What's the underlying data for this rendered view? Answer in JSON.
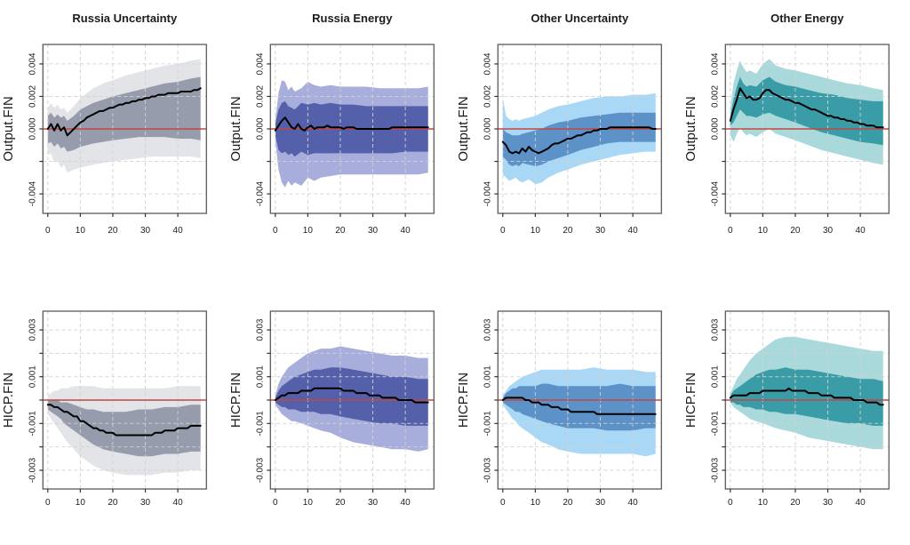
{
  "chart_data": {
    "type": "line",
    "title": "",
    "xlabel": "",
    "legend": "none",
    "grid": true,
    "col_titles": [
      "Russia Uncertainty",
      "Russia Energy",
      "Other Uncertainty",
      "Other Energy"
    ],
    "row_ylabels": [
      "Output.FIN",
      "HICP.FIN"
    ],
    "x_ticks": [
      0,
      10,
      20,
      30,
      40
    ],
    "x_range": [
      0,
      47
    ],
    "value_scale": 0.0001,
    "zero_line_color": "#C24743",
    "median_color": "#000000",
    "grid_color": "#d2d2d2",
    "box_color": "#5a5a5a",
    "rows": [
      {
        "ylabel": "Output.FIN",
        "ylim": [
          -52,
          52
        ],
        "y_ticks": [
          40,
          20,
          0,
          -20,
          -40
        ],
        "y_tick_labels": [
          "0.004",
          "0.002",
          "0.000",
          "",
          "-0.004"
        ]
      },
      {
        "ylabel": "HICP.FIN",
        "ylim": [
          -38,
          38
        ],
        "y_ticks": [
          30,
          20,
          10,
          0,
          -10,
          -20,
          -30
        ],
        "y_tick_labels": [
          "0.003",
          "",
          "0.001",
          "",
          "-0.001",
          "",
          "-0.003"
        ]
      }
    ],
    "band_x": [
      0,
      1,
      2,
      3,
      4,
      5,
      6,
      8,
      10,
      12,
      14,
      17,
      20,
      24,
      28,
      32,
      36,
      40,
      44,
      47
    ],
    "panels": [
      {
        "row": 0,
        "col": 0,
        "title": "Russia Uncertainty",
        "ylabel": "Output.FIN",
        "colors": {
          "outer": "#E3E4E7",
          "inner": "#969CAC"
        },
        "median": [
          0,
          3,
          -1,
          3,
          -1,
          1,
          -4,
          -2,
          0,
          2,
          4,
          5,
          7,
          8,
          9,
          10,
          11,
          11,
          12,
          13,
          13,
          14,
          15,
          15,
          16,
          16,
          17,
          17,
          18,
          18,
          19,
          19,
          20,
          20,
          21,
          21,
          21,
          22,
          22,
          22,
          22,
          23,
          23,
          23,
          23,
          24,
          24,
          25
        ],
        "inner_hi": [
          8,
          10,
          7,
          9,
          7,
          8,
          5,
          8,
          12,
          14,
          16,
          18,
          20,
          22,
          24,
          26,
          28,
          29,
          31,
          32
        ],
        "inner_lo": [
          -9,
          -8,
          -11,
          -9,
          -12,
          -11,
          -14,
          -13,
          -11,
          -10,
          -9,
          -8,
          -7,
          -6,
          -5,
          -5,
          -5,
          -6,
          -6,
          -7
        ],
        "outer_hi": [
          13,
          16,
          13,
          15,
          12,
          13,
          10,
          14,
          19,
          22,
          25,
          28,
          30,
          33,
          35,
          37,
          39,
          40,
          42,
          43
        ],
        "outer_lo": [
          -16,
          -15,
          -21,
          -19,
          -24,
          -22,
          -27,
          -25,
          -24,
          -23,
          -22,
          -21,
          -20,
          -19,
          -18,
          -17,
          -17,
          -17,
          -17,
          -18
        ]
      },
      {
        "row": 0,
        "col": 1,
        "title": "Russia Energy",
        "ylabel": "Output.FIN",
        "colors": {
          "outer": "#A8AEDC",
          "inner": "#5560AA"
        },
        "median": [
          -1,
          2,
          5,
          7,
          4,
          1,
          0,
          3,
          0,
          -1,
          1,
          2,
          0,
          1,
          1,
          1,
          2,
          1,
          1,
          1,
          1,
          0,
          1,
          1,
          1,
          0,
          0,
          0,
          0,
          0,
          0,
          0,
          0,
          0,
          0,
          0,
          1,
          1,
          1,
          1,
          1,
          1,
          1,
          1,
          1,
          1,
          1,
          1
        ],
        "inner_hi": [
          3,
          12,
          16,
          17,
          14,
          13,
          12,
          16,
          15,
          16,
          15,
          16,
          15,
          15,
          14,
          14,
          14,
          14,
          14,
          14
        ],
        "inner_lo": [
          -4,
          -13,
          -15,
          -14,
          -16,
          -15,
          -17,
          -14,
          -16,
          -15,
          -15,
          -15,
          -15,
          -15,
          -15,
          -15,
          -15,
          -14,
          -14,
          -14
        ],
        "outer_hi": [
          5,
          22,
          30,
          29,
          24,
          26,
          23,
          25,
          29,
          27,
          26,
          27,
          26,
          26,
          26,
          25,
          25,
          25,
          25,
          26
        ],
        "outer_lo": [
          -7,
          -25,
          -33,
          -36,
          -32,
          -35,
          -33,
          -35,
          -30,
          -32,
          -30,
          -29,
          -28,
          -28,
          -28,
          -28,
          -28,
          -28,
          -28,
          -27
        ]
      },
      {
        "row": 0,
        "col": 2,
        "title": "Other Uncertainty",
        "ylabel": "Output.FIN",
        "colors": {
          "outer": "#A9D8F6",
          "inner": "#5C92C8"
        },
        "median": [
          -8,
          -10,
          -14,
          -15,
          -14,
          -15,
          -12,
          -14,
          -11,
          -13,
          -14,
          -15,
          -14,
          -13,
          -12,
          -10,
          -9,
          -9,
          -8,
          -7,
          -6,
          -6,
          -5,
          -4,
          -4,
          -3,
          -2,
          -2,
          -1,
          -1,
          0,
          0,
          0,
          1,
          1,
          1,
          1,
          1,
          1,
          1,
          1,
          1,
          1,
          1,
          1,
          1,
          0,
          0
        ],
        "inner_hi": [
          0,
          -2,
          -3,
          -4,
          -4,
          -4,
          -3,
          -2,
          -1,
          0,
          2,
          4,
          5,
          7,
          8,
          9,
          10,
          10,
          10,
          10
        ],
        "inner_lo": [
          -17,
          -19,
          -22,
          -23,
          -22,
          -23,
          -21,
          -22,
          -23,
          -22,
          -20,
          -18,
          -16,
          -13,
          -11,
          -9,
          -8,
          -8,
          -8,
          -8
        ],
        "outer_hi": [
          19,
          8,
          6,
          5,
          6,
          5,
          6,
          7,
          8,
          10,
          12,
          14,
          15,
          17,
          19,
          20,
          20,
          21,
          21,
          22
        ],
        "outer_lo": [
          -28,
          -30,
          -32,
          -31,
          -30,
          -32,
          -33,
          -31,
          -34,
          -33,
          -30,
          -27,
          -25,
          -22,
          -20,
          -18,
          -16,
          -15,
          -14,
          -14
        ]
      },
      {
        "row": 0,
        "col": 3,
        "title": "Other Energy",
        "ylabel": "Output.FIN",
        "colors": {
          "outer": "#AAD9DC",
          "inner": "#399CA6"
        },
        "median": [
          5,
          12,
          18,
          25,
          22,
          19,
          20,
          18,
          18,
          19,
          22,
          24,
          24,
          22,
          21,
          20,
          19,
          18,
          18,
          17,
          16,
          16,
          15,
          14,
          13,
          12,
          12,
          11,
          10,
          9,
          8,
          8,
          7,
          7,
          6,
          6,
          5,
          5,
          4,
          4,
          3,
          3,
          2,
          2,
          2,
          1,
          1,
          1
        ],
        "inner_hi": [
          8,
          18,
          26,
          32,
          28,
          26,
          27,
          26,
          30,
          32,
          29,
          27,
          26,
          24,
          22,
          21,
          19,
          18,
          17,
          17
        ],
        "inner_lo": [
          2,
          4,
          8,
          12,
          10,
          8,
          8,
          7,
          9,
          10,
          8,
          6,
          4,
          1,
          -2,
          -4,
          -6,
          -8,
          -9,
          -10
        ],
        "outer_hi": [
          13,
          28,
          36,
          42,
          38,
          35,
          36,
          34,
          40,
          43,
          39,
          37,
          36,
          34,
          32,
          30,
          28,
          27,
          25,
          24
        ],
        "outer_lo": [
          -4,
          -8,
          -3,
          1,
          -2,
          -4,
          -3,
          -5,
          -2,
          0,
          -3,
          -5,
          -7,
          -10,
          -13,
          -15,
          -17,
          -19,
          -21,
          -22
        ]
      },
      {
        "row": 1,
        "col": 0,
        "title": "",
        "ylabel": "HICP.FIN",
        "colors": {
          "outer": "#E3E4E7",
          "inner": "#969CAC"
        },
        "median": [
          -2,
          -2,
          -3,
          -3,
          -4,
          -5,
          -5,
          -6,
          -7,
          -7,
          -9,
          -9,
          -10,
          -11,
          -12,
          -12,
          -13,
          -13,
          -14,
          -14,
          -14,
          -15,
          -15,
          -15,
          -15,
          -15,
          -15,
          -15,
          -15,
          -15,
          -15,
          -15,
          -15,
          -14,
          -14,
          -14,
          -13,
          -13,
          -13,
          -13,
          -12,
          -12,
          -12,
          -12,
          -11,
          -11,
          -11,
          -11
        ],
        "inner_hi": [
          0,
          0,
          0,
          0,
          -1,
          -1,
          -1,
          -2,
          -3,
          -4,
          -4,
          -5,
          -5,
          -5,
          -4,
          -4,
          -3,
          -3,
          -2,
          -2
        ],
        "inner_lo": [
          -4,
          -5,
          -6,
          -7,
          -8,
          -10,
          -11,
          -13,
          -15,
          -17,
          -19,
          -21,
          -22,
          -23,
          -24,
          -24,
          -23,
          -23,
          -22,
          -22
        ],
        "outer_hi": [
          2,
          3,
          4,
          4,
          5,
          5,
          5,
          6,
          6,
          6,
          6,
          5,
          5,
          5,
          5,
          5,
          5,
          6,
          6,
          6
        ],
        "outer_lo": [
          -6,
          -8,
          -10,
          -12,
          -14,
          -16,
          -18,
          -21,
          -24,
          -26,
          -28,
          -30,
          -31,
          -32,
          -32,
          -32,
          -31,
          -31,
          -30,
          -30
        ]
      },
      {
        "row": 1,
        "col": 1,
        "title": "",
        "ylabel": "HICP.FIN",
        "colors": {
          "outer": "#A8AEDC",
          "inner": "#5560AA"
        },
        "median": [
          0,
          1,
          2,
          2,
          3,
          3,
          3,
          3,
          4,
          4,
          4,
          4,
          5,
          5,
          5,
          5,
          5,
          5,
          5,
          5,
          5,
          4,
          4,
          4,
          4,
          3,
          3,
          3,
          3,
          2,
          2,
          2,
          2,
          1,
          1,
          1,
          1,
          1,
          0,
          0,
          0,
          0,
          0,
          -1,
          -1,
          -1,
          -1,
          -1
        ],
        "inner_hi": [
          1,
          4,
          6,
          7,
          8,
          9,
          10,
          11,
          12,
          13,
          13,
          14,
          14,
          13,
          12,
          11,
          10,
          10,
          9,
          9
        ],
        "inner_lo": [
          -1,
          -2,
          -3,
          -3,
          -4,
          -4,
          -4,
          -5,
          -5,
          -5,
          -6,
          -6,
          -7,
          -8,
          -9,
          -10,
          -10,
          -11,
          -11,
          -11
        ],
        "outer_hi": [
          2,
          7,
          10,
          12,
          14,
          15,
          16,
          18,
          20,
          21,
          22,
          22,
          23,
          22,
          21,
          20,
          19,
          19,
          18,
          18
        ],
        "outer_lo": [
          -2,
          -4,
          -6,
          -7,
          -8,
          -9,
          -9,
          -10,
          -11,
          -12,
          -13,
          -14,
          -16,
          -18,
          -19,
          -20,
          -21,
          -21,
          -22,
          -21
        ]
      },
      {
        "row": 1,
        "col": 2,
        "title": "",
        "ylabel": "HICP.FIN",
        "colors": {
          "outer": "#A9D8F6",
          "inner": "#5C92C8"
        },
        "median": [
          0,
          1,
          1,
          1,
          1,
          1,
          1,
          0,
          0,
          -1,
          -1,
          -1,
          -2,
          -2,
          -2,
          -3,
          -3,
          -3,
          -4,
          -4,
          -4,
          -5,
          -5,
          -5,
          -5,
          -5,
          -5,
          -5,
          -5,
          -6,
          -6,
          -6,
          -6,
          -6,
          -6,
          -6,
          -6,
          -6,
          -6,
          -6,
          -6,
          -6,
          -6,
          -6,
          -6,
          -6,
          -6,
          -6
        ],
        "inner_hi": [
          1,
          3,
          4,
          5,
          5,
          6,
          6,
          6,
          6,
          7,
          7,
          6,
          6,
          6,
          6,
          6,
          7,
          6,
          6,
          6
        ],
        "inner_lo": [
          -1,
          -2,
          -3,
          -4,
          -5,
          -5,
          -6,
          -7,
          -8,
          -9,
          -10,
          -11,
          -12,
          -12,
          -12,
          -13,
          -13,
          -13,
          -12,
          -12
        ],
        "outer_hi": [
          2,
          4,
          6,
          7,
          8,
          9,
          10,
          11,
          12,
          13,
          13,
          13,
          13,
          13,
          14,
          13,
          13,
          13,
          12,
          12
        ],
        "outer_lo": [
          -2,
          -4,
          -6,
          -8,
          -9,
          -11,
          -12,
          -14,
          -16,
          -18,
          -19,
          -21,
          -22,
          -23,
          -23,
          -23,
          -23,
          -23,
          -24,
          -23
        ]
      },
      {
        "row": 1,
        "col": 3,
        "title": "",
        "ylabel": "HICP.FIN",
        "colors": {
          "outer": "#AAD9DC",
          "inner": "#399CA6"
        },
        "median": [
          1,
          2,
          2,
          2,
          2,
          2,
          3,
          3,
          3,
          3,
          4,
          4,
          4,
          4,
          4,
          4,
          4,
          4,
          5,
          4,
          4,
          4,
          4,
          4,
          3,
          3,
          3,
          3,
          2,
          2,
          2,
          2,
          1,
          1,
          1,
          1,
          1,
          1,
          0,
          0,
          0,
          0,
          -1,
          -1,
          -1,
          -1,
          -2,
          -2
        ],
        "inner_hi": [
          2,
          4,
          5,
          6,
          7,
          8,
          9,
          11,
          12,
          13,
          13,
          14,
          13,
          13,
          12,
          11,
          10,
          9,
          9,
          8
        ],
        "inner_lo": [
          -1,
          -1,
          -2,
          -2,
          -3,
          -3,
          -3,
          -4,
          -4,
          -5,
          -5,
          -6,
          -6,
          -7,
          -8,
          -9,
          -10,
          -10,
          -11,
          -11
        ],
        "outer_hi": [
          3,
          6,
          9,
          11,
          13,
          15,
          17,
          20,
          22,
          24,
          26,
          27,
          27,
          26,
          25,
          24,
          23,
          22,
          21,
          21
        ],
        "outer_lo": [
          -1,
          -3,
          -4,
          -5,
          -6,
          -7,
          -8,
          -9,
          -10,
          -11,
          -12,
          -13,
          -14,
          -16,
          -17,
          -18,
          -19,
          -20,
          -21,
          -21
        ]
      }
    ]
  }
}
